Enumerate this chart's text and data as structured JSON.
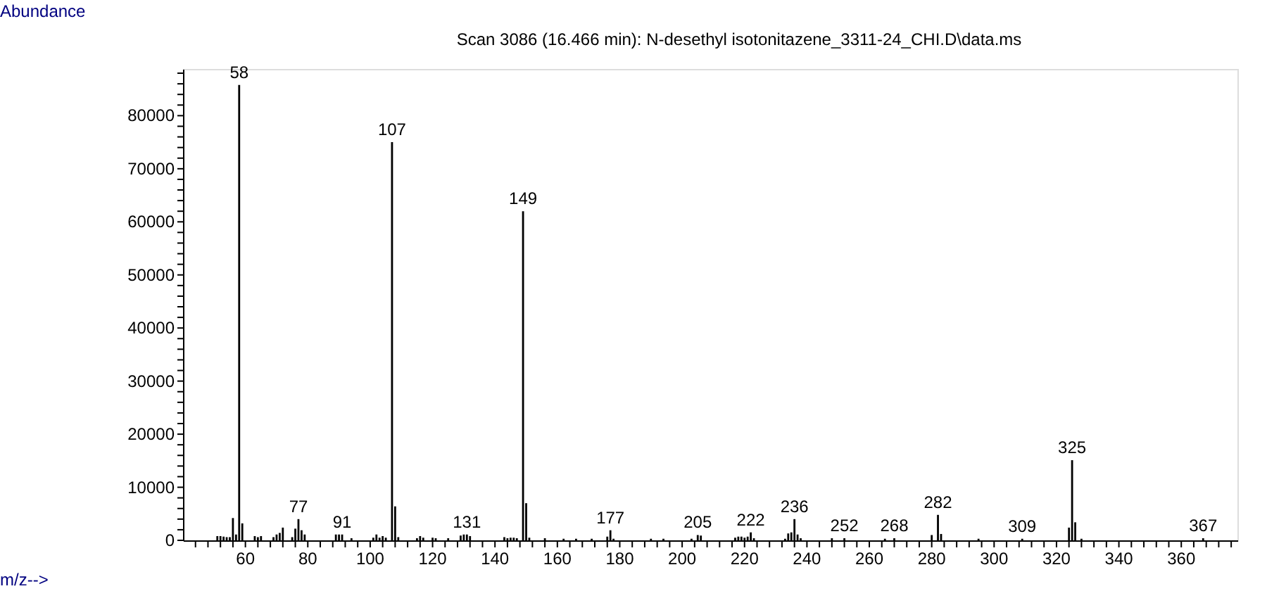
{
  "chart_data": {
    "type": "bar",
    "title": "Scan 3086 (16.466 min): N-desethyl isotonitazene_3311-24_CHI.D\\data.ms",
    "xlabel": "m/z-->",
    "ylabel": "Abundance",
    "x": [
      51,
      52,
      53,
      54,
      55,
      56,
      57,
      58,
      59,
      63,
      64,
      65,
      69,
      70,
      71,
      72,
      75,
      76,
      77,
      78,
      79,
      89,
      90,
      91,
      94,
      101,
      102,
      103,
      104,
      105,
      107,
      108,
      109,
      115,
      116,
      117,
      120,
      121,
      125,
      129,
      130,
      131,
      132,
      143,
      144,
      145,
      146,
      147,
      149,
      150,
      151,
      156,
      162,
      166,
      171,
      176,
      177,
      178,
      190,
      194,
      203,
      205,
      206,
      217,
      218,
      219,
      220,
      221,
      222,
      223,
      233,
      234,
      235,
      236,
      237,
      238,
      248,
      252,
      265,
      268,
      280,
      282,
      283,
      295,
      309,
      324,
      325,
      326,
      328,
      367
    ],
    "values": [
      800,
      800,
      700,
      600,
      600,
      4200,
      1100,
      85800,
      3200,
      800,
      600,
      800,
      600,
      1100,
      1400,
      2400,
      600,
      2200,
      4000,
      1900,
      1100,
      1100,
      1100,
      1100,
      400,
      500,
      1100,
      500,
      800,
      500,
      75000,
      6400,
      600,
      400,
      800,
      500,
      500,
      400,
      400,
      900,
      1100,
      1100,
      800,
      600,
      400,
      500,
      500,
      400,
      62000,
      7000,
      500,
      400,
      300,
      300,
      300,
      700,
      1900,
      300,
      300,
      300,
      300,
      1000,
      900,
      500,
      700,
      700,
      500,
      700,
      1500,
      400,
      300,
      1300,
      1500,
      4000,
      1100,
      400,
      400,
      400,
      300,
      400,
      1000,
      4800,
      1200,
      300,
      300,
      2400,
      15100,
      3400,
      300,
      400
    ],
    "color": "#000000",
    "xlim": [
      40,
      378
    ],
    "xticks": [
      {
        "value": 44,
        "label": null
      },
      {
        "value": 48,
        "label": null
      },
      {
        "value": 52,
        "label": null
      },
      {
        "value": 56,
        "label": null
      },
      60,
      {
        "value": 64,
        "label": null
      },
      {
        "value": 68,
        "label": null
      },
      {
        "value": 72,
        "label": null
      },
      {
        "value": 76,
        "label": null
      },
      80,
      {
        "value": 84,
        "label": null
      },
      {
        "value": 88,
        "label": null
      },
      {
        "value": 92,
        "label": null
      },
      {
        "value": 96,
        "label": null
      },
      100,
      {
        "value": 104,
        "label": null
      },
      {
        "value": 108,
        "label": null
      },
      {
        "value": 112,
        "label": null
      },
      {
        "value": 116,
        "label": null
      },
      120,
      {
        "value": 124,
        "label": null
      },
      {
        "value": 128,
        "label": null
      },
      {
        "value": 132,
        "label": null
      },
      {
        "value": 136,
        "label": null
      },
      140,
      {
        "value": 144,
        "label": null
      },
      {
        "value": 148,
        "label": null
      },
      {
        "value": 152,
        "label": null
      },
      {
        "value": 156,
        "label": null
      },
      160,
      {
        "value": 164,
        "label": null
      },
      {
        "value": 168,
        "label": null
      },
      {
        "value": 172,
        "label": null
      },
      {
        "value": 176,
        "label": null
      },
      180,
      {
        "value": 184,
        "label": null
      },
      {
        "value": 188,
        "label": null
      },
      {
        "value": 192,
        "label": null
      },
      {
        "value": 196,
        "label": null
      },
      200,
      {
        "value": 204,
        "label": null
      },
      {
        "value": 208,
        "label": null
      },
      {
        "value": 212,
        "label": null
      },
      {
        "value": 216,
        "label": null
      },
      220,
      {
        "value": 224,
        "label": null
      },
      {
        "value": 228,
        "label": null
      },
      {
        "value": 232,
        "label": null
      },
      {
        "value": 236,
        "label": null
      },
      240,
      {
        "value": 244,
        "label": null
      },
      {
        "value": 248,
        "label": null
      },
      {
        "value": 252,
        "label": null
      },
      {
        "value": 256,
        "label": null
      },
      260,
      {
        "value": 264,
        "label": null
      },
      {
        "value": 268,
        "label": null
      },
      {
        "value": 272,
        "label": null
      },
      {
        "value": 276,
        "label": null
      },
      280,
      {
        "value": 284,
        "label": null
      },
      {
        "value": 288,
        "label": null
      },
      {
        "value": 292,
        "label": null
      },
      {
        "value": 296,
        "label": null
      },
      300,
      {
        "value": 304,
        "label": null
      },
      {
        "value": 308,
        "label": null
      },
      {
        "value": 312,
        "label": null
      },
      {
        "value": 316,
        "label": null
      },
      320,
      {
        "value": 324,
        "label": null
      },
      {
        "value": 328,
        "label": null
      },
      {
        "value": 332,
        "label": null
      },
      {
        "value": 336,
        "label": null
      },
      340,
      {
        "value": 344,
        "label": null
      },
      {
        "value": 348,
        "label": null
      },
      {
        "value": 352,
        "label": null
      },
      {
        "value": 356,
        "label": null
      },
      360,
      {
        "value": 364,
        "label": null
      },
      {
        "value": 368,
        "label": null
      },
      {
        "value": 372,
        "label": null
      },
      {
        "value": 376,
        "label": null
      }
    ],
    "ylim": [
      0,
      88800
    ],
    "yticks": [
      0,
      {
        "value": 2000,
        "label": null
      },
      {
        "value": 4000,
        "label": null
      },
      {
        "value": 6000,
        "label": null
      },
      {
        "value": 8000,
        "label": null
      },
      10000,
      {
        "value": 12000,
        "label": null
      },
      {
        "value": 14000,
        "label": null
      },
      {
        "value": 16000,
        "label": null
      },
      {
        "value": 18000,
        "label": null
      },
      20000,
      {
        "value": 22000,
        "label": null
      },
      {
        "value": 24000,
        "label": null
      },
      {
        "value": 26000,
        "label": null
      },
      {
        "value": 28000,
        "label": null
      },
      30000,
      {
        "value": 32000,
        "label": null
      },
      {
        "value": 34000,
        "label": null
      },
      {
        "value": 36000,
        "label": null
      },
      {
        "value": 38000,
        "label": null
      },
      40000,
      {
        "value": 42000,
        "label": null
      },
      {
        "value": 44000,
        "label": null
      },
      {
        "value": 46000,
        "label": null
      },
      {
        "value": 48000,
        "label": null
      },
      50000,
      {
        "value": 52000,
        "label": null
      },
      {
        "value": 54000,
        "label": null
      },
      {
        "value": 56000,
        "label": null
      },
      {
        "value": 58000,
        "label": null
      },
      60000,
      {
        "value": 62000,
        "label": null
      },
      {
        "value": 64000,
        "label": null
      },
      {
        "value": 66000,
        "label": null
      },
      {
        "value": 68000,
        "label": null
      },
      70000,
      {
        "value": 72000,
        "label": null
      },
      {
        "value": 74000,
        "label": null
      },
      {
        "value": 76000,
        "label": null
      },
      {
        "value": 78000,
        "label": null
      },
      80000,
      {
        "value": 82000,
        "label": null
      },
      {
        "value": 84000,
        "label": null
      },
      {
        "value": 86000,
        "label": null
      },
      {
        "value": 88000,
        "label": null
      }
    ],
    "annotations": [
      {
        "text": "58",
        "x": 58,
        "y": 85800
      },
      {
        "text": "77",
        "x": 77,
        "y": 4000
      },
      {
        "text": "91",
        "x": 91,
        "y": 1100
      },
      {
        "text": "107",
        "x": 107,
        "y": 75000
      },
      {
        "text": "131",
        "x": 131,
        "y": 1100
      },
      {
        "text": "149",
        "x": 149,
        "y": 62000
      },
      {
        "text": "177",
        "x": 177,
        "y": 1900
      },
      {
        "text": "205",
        "x": 205,
        "y": 1000
      },
      {
        "text": "222",
        "x": 222,
        "y": 1500
      },
      {
        "text": "236",
        "x": 236,
        "y": 4000
      },
      {
        "text": "252",
        "x": 252,
        "y": 400
      },
      {
        "text": "268",
        "x": 268,
        "y": 400
      },
      {
        "text": "282",
        "x": 282,
        "y": 4800
      },
      {
        "text": "309",
        "x": 309,
        "y": 300
      },
      {
        "text": "325",
        "x": 325,
        "y": 15100
      },
      {
        "text": "367",
        "x": 367,
        "y": 400
      }
    ],
    "grid": false
  }
}
